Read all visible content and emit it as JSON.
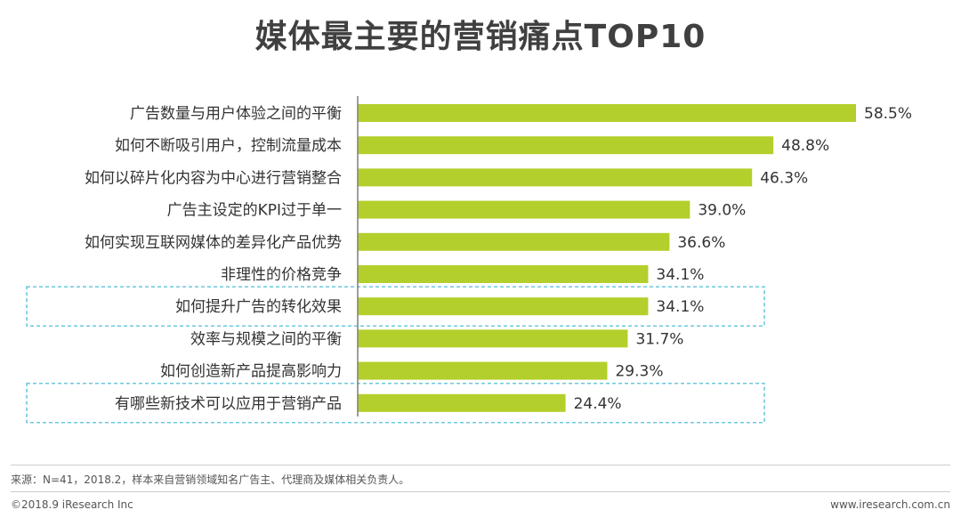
{
  "title": "媒体最主要的营销痛点TOP10",
  "chart_data": {
    "type": "bar",
    "orientation": "horizontal",
    "categories": [
      "广告数量与用户体验之间的平衡",
      "如何不断吸引用户，控制流量成本",
      "如何以碎片化内容为中心进行营销整合",
      "广告主设定的KPI过于单一",
      "如何实现互联网媒体的差异化产品优势",
      "非理性的价格竞争",
      "如何提升广告的转化效果",
      "效率与规模之间的平衡",
      "如何创造新产品提高影响力",
      "有哪些新技术可以应用于营销产品"
    ],
    "values": [
      58.5,
      48.8,
      46.3,
      39.0,
      36.6,
      34.1,
      34.1,
      31.7,
      29.3,
      24.4
    ],
    "value_labels": [
      "58.5%",
      "48.8%",
      "46.3%",
      "39.0%",
      "36.6%",
      "34.1%",
      "34.1%",
      "31.7%",
      "29.3%",
      "24.4%"
    ],
    "highlighted": [
      "如何提升广告的转化效果",
      "有哪些新技术可以应用于营销产品"
    ],
    "xlim": [
      0,
      65
    ],
    "bar_color": "#b3cf2b",
    "axis_color": "#7f7f7f",
    "highlight_border_color": "#3bb5d3"
  },
  "footer": {
    "source": "来源：N=41，2018.2，样本来自营销领域知名广告主、代理商及媒体相关负责人。",
    "copyright": "©2018.9 iResearch Inc",
    "website": "www.iresearch.com.cn"
  }
}
